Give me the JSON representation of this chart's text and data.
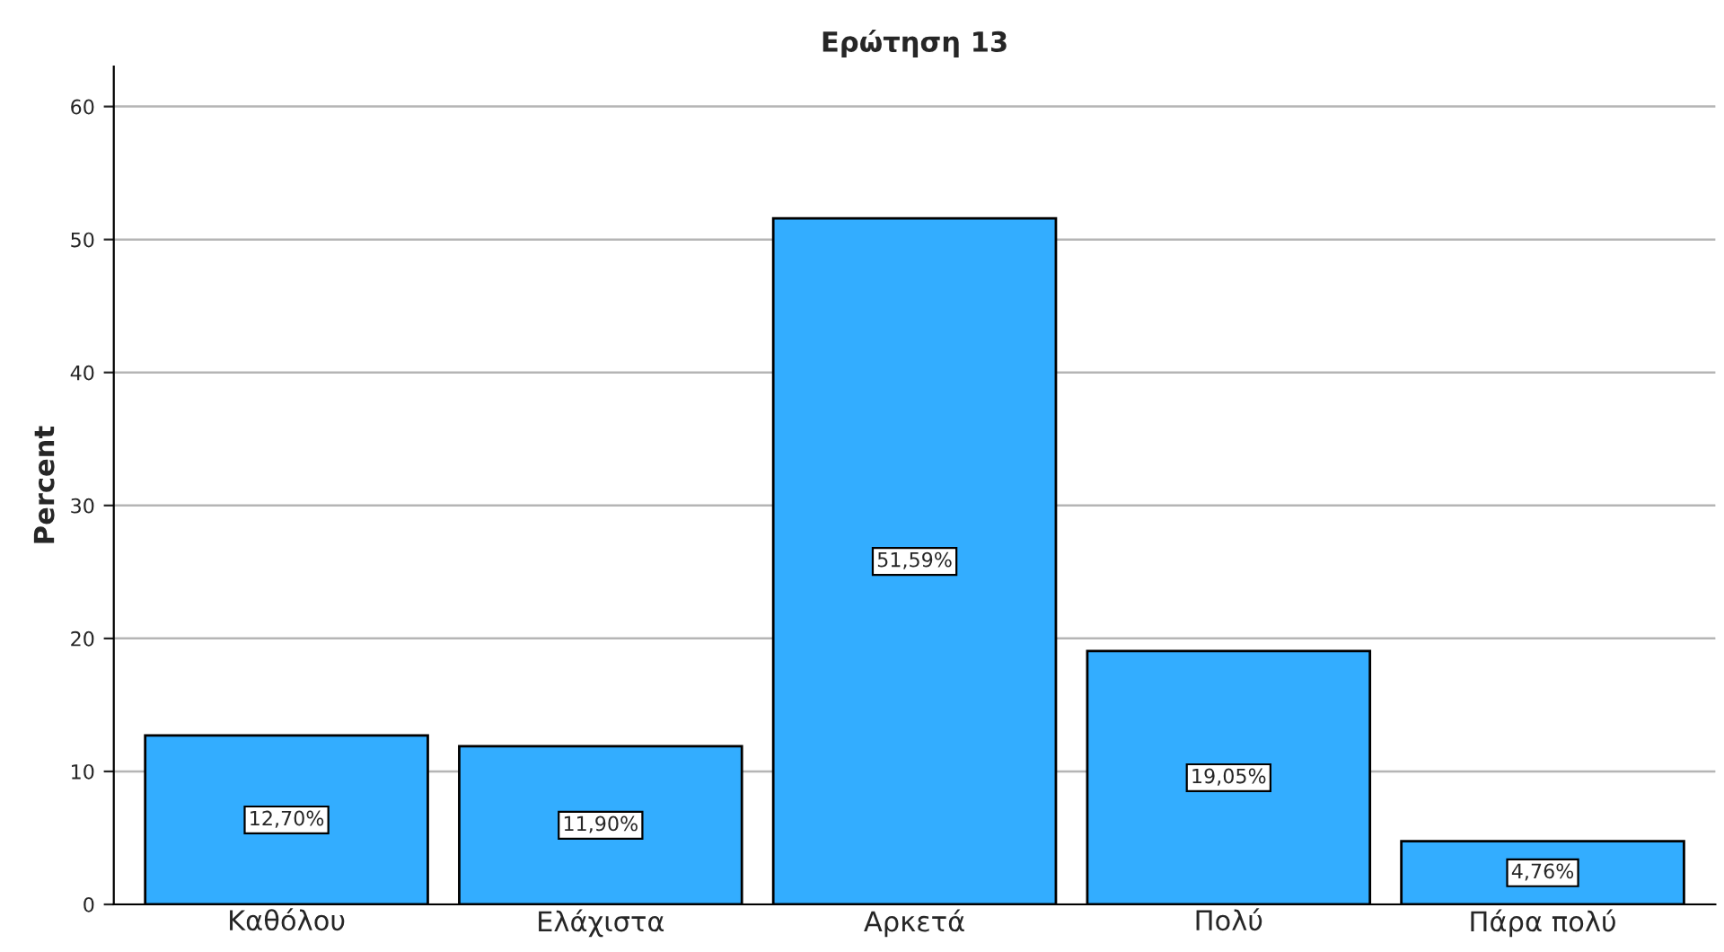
{
  "chart_data": {
    "type": "bar",
    "title": "Ερώτηση 13",
    "ylabel": "Percent",
    "categories": [
      "Καθόλου",
      "Ελάχιστα",
      "Αρκετά",
      "Πολύ",
      "Πάρα πολύ"
    ],
    "values": [
      12.7,
      11.9,
      51.59,
      19.05,
      4.76
    ],
    "value_labels": [
      "12,70%",
      "11,90%",
      "51,59%",
      "19,05%",
      "4,76%"
    ],
    "color": "#33adff",
    "ylim": [
      0,
      63
    ],
    "yticks": [
      0,
      10,
      20,
      30,
      40,
      50,
      60
    ],
    "grid": "y",
    "legend": false
  }
}
